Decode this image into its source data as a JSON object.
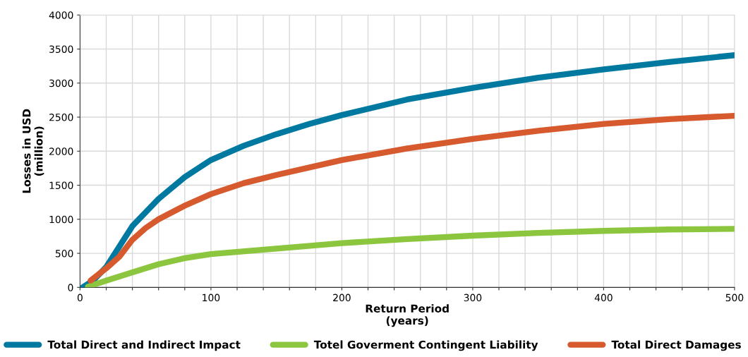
{
  "chart_data": {
    "type": "line",
    "xlabel": "Return Period\n(years)",
    "ylabel": "Losses in USD\n(million)",
    "xlim": [
      0,
      500
    ],
    "ylim": [
      0,
      4000
    ],
    "xticks": [
      0,
      {
        "value": 20,
        "label": null
      },
      {
        "value": 40,
        "label": null
      },
      {
        "value": 60,
        "label": null
      },
      {
        "value": 80,
        "label": null
      },
      100,
      {
        "value": 120,
        "label": null
      },
      {
        "value": 140,
        "label": null
      },
      {
        "value": 160,
        "label": null
      },
      {
        "value": 180,
        "label": null
      },
      200,
      {
        "value": 220,
        "label": null
      },
      {
        "value": 240,
        "label": null
      },
      {
        "value": 260,
        "label": null
      },
      {
        "value": 280,
        "label": null
      },
      300,
      {
        "value": 320,
        "label": null
      },
      {
        "value": 340,
        "label": null
      },
      {
        "value": 360,
        "label": null
      },
      {
        "value": 380,
        "label": null
      },
      400,
      {
        "value": 420,
        "label": null
      },
      {
        "value": 440,
        "label": null
      },
      {
        "value": 460,
        "label": null
      },
      {
        "value": 480,
        "label": null
      },
      500
    ],
    "yticks": [
      0,
      500,
      1000,
      1500,
      2000,
      2500,
      3000,
      3500,
      4000
    ],
    "grid": true,
    "legend": "bottom",
    "marker": "none",
    "line_style": "solid",
    "series": [
      {
        "name": "Total Direct and Indirect Impact",
        "color": "#0079a0",
        "x": [
          2,
          10,
          20,
          30,
          40,
          50,
          60,
          80,
          100,
          125,
          150,
          175,
          200,
          250,
          300,
          350,
          400,
          450,
          500
        ],
        "values": [
          0,
          100,
          300,
          600,
          900,
          1100,
          1300,
          1620,
          1870,
          2080,
          2250,
          2400,
          2530,
          2760,
          2930,
          3080,
          3200,
          3310,
          3410
        ]
      },
      {
        "name": "Totel Goverment Contingent Liability",
        "color": "#8cc63f",
        "x": [
          6,
          20,
          40,
          60,
          80,
          100,
          150,
          200,
          250,
          300,
          350,
          400,
          450,
          500
        ],
        "values": [
          10,
          100,
          220,
          340,
          430,
          490,
          570,
          650,
          710,
          760,
          800,
          830,
          850,
          860
        ]
      },
      {
        "name": "Total Direct Damages",
        "color": "#d65a2e",
        "x": [
          8,
          20,
          30,
          40,
          50,
          60,
          80,
          100,
          125,
          150,
          200,
          250,
          300,
          350,
          400,
          450,
          500
        ],
        "values": [
          100,
          280,
          450,
          700,
          870,
          1000,
          1200,
          1370,
          1530,
          1650,
          1870,
          2040,
          2180,
          2300,
          2400,
          2470,
          2520
        ]
      }
    ]
  }
}
